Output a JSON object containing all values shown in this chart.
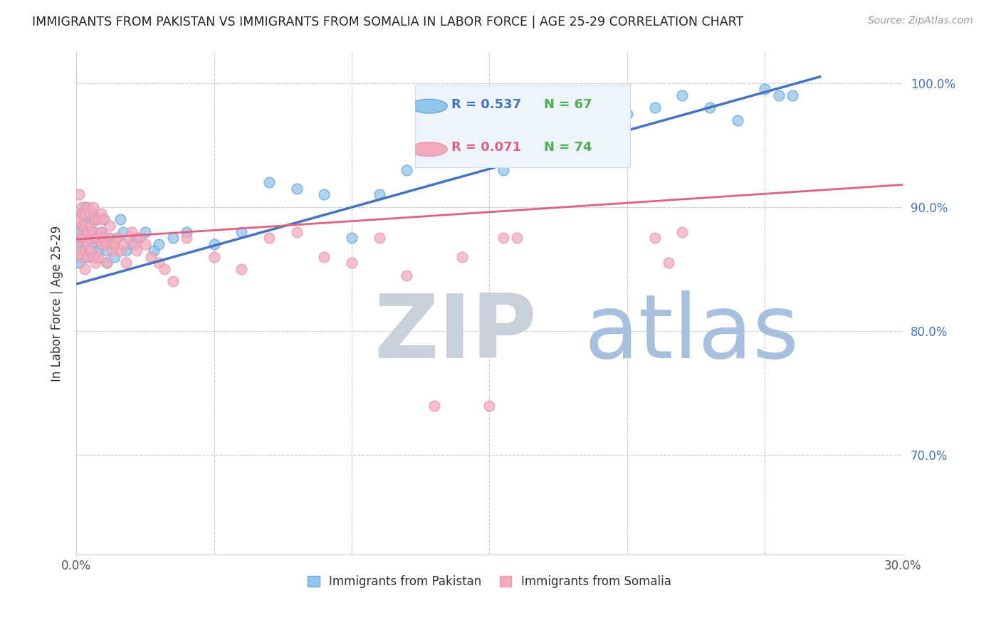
{
  "title": "IMMIGRANTS FROM PAKISTAN VS IMMIGRANTS FROM SOMALIA IN LABOR FORCE | AGE 25-29 CORRELATION CHART",
  "source": "Source: ZipAtlas.com",
  "ylabel": "In Labor Force | Age 25-29",
  "xlim": [
    0.0,
    0.3
  ],
  "ylim": [
    0.62,
    1.025
  ],
  "xticks": [
    0.0,
    0.05,
    0.1,
    0.15,
    0.2,
    0.25,
    0.3
  ],
  "xticklabels": [
    "0.0%",
    "",
    "",
    "",
    "",
    "",
    "30.0%"
  ],
  "yticks_right": [
    0.7,
    0.8,
    0.9,
    1.0
  ],
  "ytick_right_labels": [
    "70.0%",
    "80.0%",
    "90.0%",
    "100.0%"
  ],
  "legend_r_pakistan": "R = 0.537",
  "legend_n_pakistan": "N = 67",
  "legend_r_somalia": "R = 0.071",
  "legend_n_somalia": "N = 74",
  "pakistan_color": "#92C5EC",
  "somalia_color": "#F4AABE",
  "pakistan_line_color": "#4472C4",
  "somalia_line_color": "#E06080",
  "pakistan_edge_color": "#6AAAE0",
  "somalia_edge_color": "#E898B0",
  "watermark_zip_color": "#C8D0DC",
  "watermark_atlas_color": "#A8C0E0",
  "background_color": "#FFFFFF",
  "grid_color": "#CCCCCC",
  "title_color": "#222222",
  "axis_label_color": "#333333",
  "right_axis_color": "#4472C4",
  "legend_bg_color": "#EEF4FC",
  "legend_border_color": "#CCDDEE",
  "green_color": "#4CAF50",
  "pakistan_x": [
    0.001,
    0.001,
    0.001,
    0.002,
    0.002,
    0.002,
    0.003,
    0.003,
    0.003,
    0.003,
    0.004,
    0.004,
    0.004,
    0.005,
    0.005,
    0.005,
    0.006,
    0.006,
    0.006,
    0.007,
    0.007,
    0.007,
    0.008,
    0.008,
    0.009,
    0.009,
    0.01,
    0.01,
    0.011,
    0.011,
    0.012,
    0.013,
    0.014,
    0.015,
    0.016,
    0.017,
    0.018,
    0.02,
    0.022,
    0.025,
    0.028,
    0.03,
    0.035,
    0.04,
    0.05,
    0.06,
    0.07,
    0.08,
    0.09,
    0.1,
    0.11,
    0.12,
    0.13,
    0.14,
    0.155,
    0.16,
    0.17,
    0.18,
    0.19,
    0.2,
    0.21,
    0.22,
    0.23,
    0.24,
    0.25,
    0.255,
    0.26
  ],
  "pakistan_y": [
    0.88,
    0.87,
    0.855,
    0.885,
    0.865,
    0.895,
    0.875,
    0.86,
    0.89,
    0.9,
    0.87,
    0.885,
    0.86,
    0.875,
    0.89,
    0.865,
    0.88,
    0.895,
    0.87,
    0.875,
    0.86,
    0.89,
    0.875,
    0.865,
    0.88,
    0.87,
    0.875,
    0.89,
    0.865,
    0.855,
    0.875,
    0.87,
    0.86,
    0.875,
    0.89,
    0.88,
    0.865,
    0.87,
    0.875,
    0.88,
    0.865,
    0.87,
    0.875,
    0.88,
    0.87,
    0.88,
    0.92,
    0.915,
    0.91,
    0.875,
    0.91,
    0.93,
    0.94,
    0.95,
    0.93,
    0.94,
    0.96,
    0.95,
    0.97,
    0.975,
    0.98,
    0.99,
    0.98,
    0.97,
    0.995,
    0.99,
    0.99
  ],
  "somalia_x": [
    0.001,
    0.001,
    0.001,
    0.001,
    0.002,
    0.002,
    0.002,
    0.002,
    0.002,
    0.003,
    0.003,
    0.003,
    0.003,
    0.003,
    0.004,
    0.004,
    0.004,
    0.004,
    0.005,
    0.005,
    0.005,
    0.005,
    0.006,
    0.006,
    0.006,
    0.007,
    0.007,
    0.007,
    0.008,
    0.008,
    0.008,
    0.009,
    0.009,
    0.009,
    0.01,
    0.01,
    0.011,
    0.011,
    0.012,
    0.012,
    0.013,
    0.013,
    0.014,
    0.015,
    0.016,
    0.017,
    0.018,
    0.019,
    0.02,
    0.021,
    0.022,
    0.023,
    0.025,
    0.027,
    0.03,
    0.032,
    0.035,
    0.04,
    0.05,
    0.06,
    0.07,
    0.08,
    0.09,
    0.1,
    0.11,
    0.12,
    0.13,
    0.14,
    0.15,
    0.155,
    0.16,
    0.21,
    0.215,
    0.22
  ],
  "somalia_y": [
    0.875,
    0.865,
    0.89,
    0.91,
    0.875,
    0.885,
    0.9,
    0.86,
    0.895,
    0.875,
    0.885,
    0.865,
    0.895,
    0.85,
    0.88,
    0.87,
    0.9,
    0.86,
    0.875,
    0.895,
    0.865,
    0.885,
    0.88,
    0.86,
    0.9,
    0.875,
    0.89,
    0.855,
    0.875,
    0.89,
    0.86,
    0.88,
    0.87,
    0.895,
    0.875,
    0.89,
    0.87,
    0.855,
    0.885,
    0.875,
    0.87,
    0.865,
    0.87,
    0.875,
    0.865,
    0.87,
    0.855,
    0.875,
    0.88,
    0.87,
    0.865,
    0.875,
    0.87,
    0.86,
    0.855,
    0.85,
    0.84,
    0.875,
    0.86,
    0.85,
    0.875,
    0.88,
    0.86,
    0.855,
    0.875,
    0.845,
    0.74,
    0.86,
    0.74,
    0.875,
    0.875,
    0.875,
    0.855,
    0.88
  ],
  "pak_line_x0": 0.0,
  "pak_line_x1": 0.27,
  "pak_line_y0": 0.838,
  "pak_line_y1": 1.005,
  "som_line_x0": 0.0,
  "som_line_x1": 0.3,
  "som_line_y0": 0.874,
  "som_line_y1": 0.918
}
